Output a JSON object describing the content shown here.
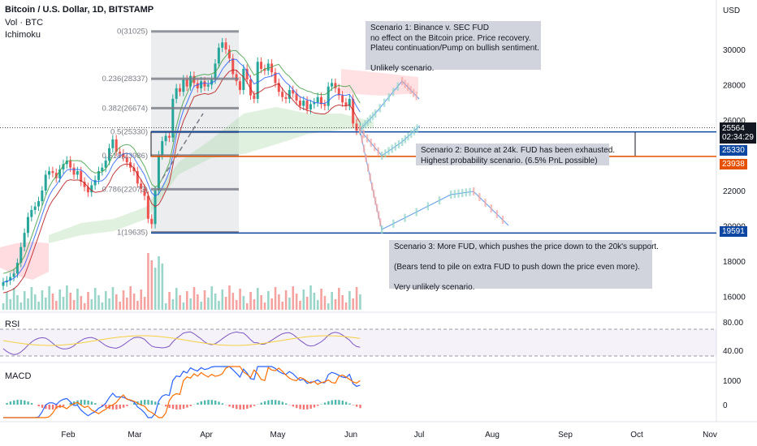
{
  "header": {
    "title": "Bitcoin / U.S. Dollar, 1D, BITSTAMP",
    "vol": "Vol · BTC",
    "indicator": "Ichimoku"
  },
  "price_axis": {
    "currency": "USD",
    "ticks": [
      "30000",
      "28000",
      "26000",
      "22000",
      "20000",
      "18000",
      "16000"
    ]
  },
  "time_axis": {
    "ticks": [
      "Feb",
      "Mar",
      "Apr",
      "May",
      "Jun",
      "Jul",
      "Aug",
      "Sep",
      "Oct",
      "Nov"
    ]
  },
  "price_tags": {
    "last": "25564",
    "countdown": "02:34:29",
    "p25330": "25330",
    "p23938": "23938",
    "p19591": "19591"
  },
  "fib_labels": [
    "0(31025)",
    "0.236(28337)",
    "0.382(26674)",
    "0.5(25330)",
    "0.618(23986)",
    "0.786(22073)",
    "1(19635)"
  ],
  "notes": {
    "s1": [
      "Scenario 1: Binance v. SEC FUD",
      "no effect on the Bitcoin price. Price recovery.",
      "Plateu continuation/Pump on bullish sentiment.",
      "",
      "Unlikely scenario."
    ],
    "s2": [
      "Scenario 2: Bounce at 24k. FUD has been exhausted.",
      "Highest probability scenario. (6.5% PnL possible)"
    ],
    "s3": [
      "Scenario 3: More FUD, which pushes the price down to the 20k's support.",
      "",
      "(Bears tend to pile on extra FUD to push down the price even more).",
      "",
      "Very unlikely scenario."
    ]
  },
  "rsi": {
    "label": "RSI",
    "ticks": [
      "80.00",
      "40.00"
    ]
  },
  "macd": {
    "label": "MACD",
    "ticks": [
      "1000",
      "0"
    ]
  },
  "colors": {
    "up": "#26a69a",
    "down": "#ef5350",
    "blue": "#0d47a1",
    "orange": "#e65100",
    "cloud_green": "#a5d6a7",
    "cloud_red": "#ffcdd2"
  },
  "chart_data": {
    "type": "candlestick",
    "title": "Bitcoin / U.S. Dollar, 1D, BITSTAMP",
    "ylim": [
      15000,
      32000
    ],
    "closes": [
      16800,
      16900,
      17100,
      17300,
      17900,
      18800,
      19600,
      20500,
      20900,
      21100,
      21400,
      22000,
      22900,
      23100,
      23000,
      22700,
      23200,
      23500,
      23700,
      23300,
      22900,
      23100,
      22500,
      22200,
      21900,
      22300,
      22600,
      23100,
      23300,
      23700,
      24400,
      24900,
      24200,
      24100,
      23900,
      23600,
      23300,
      23100,
      22400,
      22100,
      21700,
      20400,
      20100,
      22000,
      24000,
      24800,
      25100,
      25000,
      27200,
      27800,
      27600,
      28300,
      27900,
      28500,
      28100,
      27800,
      28200,
      27900,
      28000,
      28300,
      29200,
      30100,
      30400,
      30000,
      29500,
      28600,
      28200,
      27700,
      28900,
      28300,
      27400,
      27200,
      29300,
      28900,
      28800,
      29200,
      28700,
      28100,
      27600,
      27300,
      27200,
      27700,
      27500,
      27100,
      26800,
      27100,
      26600,
      26900,
      27000,
      27300,
      26900,
      26800,
      27900,
      28100,
      27800,
      27400,
      27000,
      26800,
      27200,
      25800,
      25400,
      25600
    ],
    "levels": {
      "resistance_blue": 25330,
      "support_orange": 23938,
      "support_blue": 19591
    }
  }
}
